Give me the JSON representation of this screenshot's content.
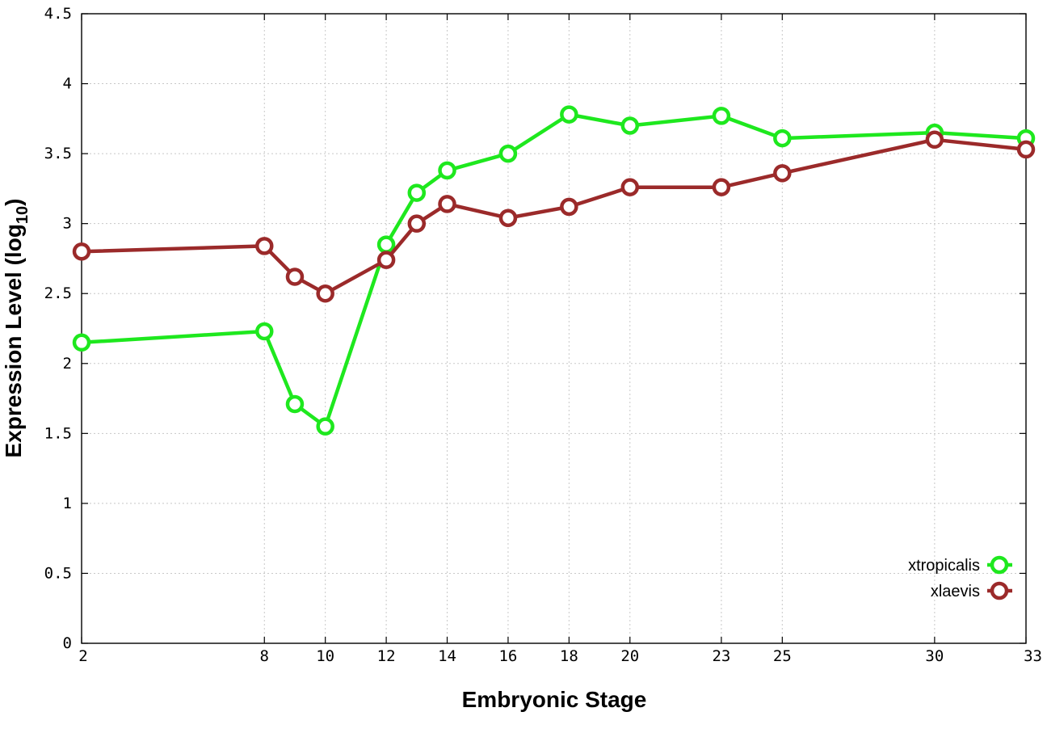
{
  "chart_data": {
    "type": "line",
    "title": "",
    "xlabel": "Embryonic Stage",
    "ylabel_main": "Expression Level (log",
    "ylabel_sub": "10",
    "ylabel_close": ")",
    "x": [
      2,
      8,
      9,
      10,
      12,
      13,
      14,
      16,
      18,
      20,
      23,
      25,
      30,
      33
    ],
    "x_ticks": [
      2,
      8,
      10,
      12,
      14,
      16,
      18,
      20,
      23,
      25,
      30,
      33
    ],
    "y_ticks": [
      "0",
      "0.5",
      "1",
      "1.5",
      "2",
      "2.5",
      "3",
      "3.5",
      "4",
      "4.5"
    ],
    "ylim": [
      0,
      4.5
    ],
    "grid": true,
    "legend_position": "bottom-right",
    "series": [
      {
        "name": "xtropicalis",
        "color": "#1ee81e",
        "values": [
          2.15,
          2.23,
          1.71,
          1.55,
          2.85,
          3.22,
          3.38,
          3.5,
          3.78,
          3.7,
          3.77,
          3.61,
          3.65,
          3.61
        ]
      },
      {
        "name": "xlaevis",
        "color": "#9b2a2a",
        "values": [
          2.8,
          2.84,
          2.62,
          2.5,
          2.74,
          3.0,
          3.14,
          3.04,
          3.12,
          3.26,
          3.26,
          3.36,
          3.6,
          3.53
        ]
      }
    ]
  }
}
